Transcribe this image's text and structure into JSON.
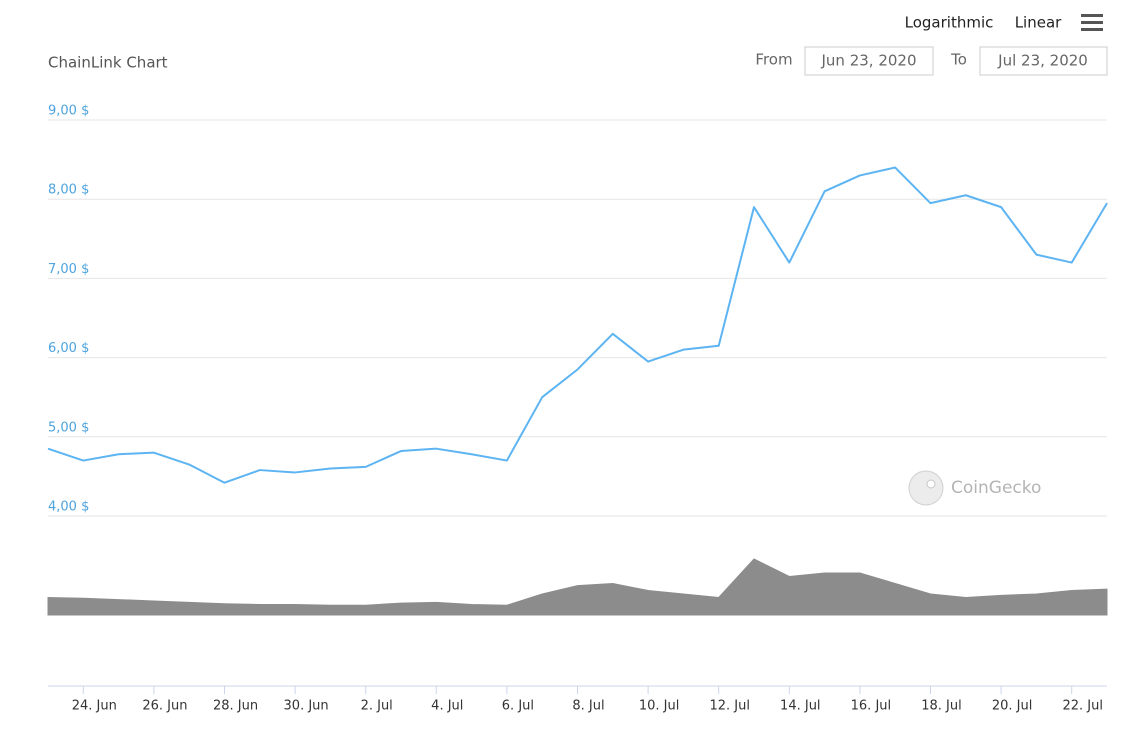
{
  "chart_data": {
    "type": "line",
    "title": "ChainLink Chart",
    "scale_options": [
      "Logarithmic",
      "Linear"
    ],
    "from_label": "From",
    "from": "Jun 23, 2020",
    "to_label": "To",
    "to": "Jul 23, 2020",
    "watermark": "CoinGecko",
    "x": [
      "2020-06-23",
      "2020-06-24",
      "2020-06-25",
      "2020-06-26",
      "2020-06-27",
      "2020-06-28",
      "2020-06-29",
      "2020-06-30",
      "2020-07-01",
      "2020-07-02",
      "2020-07-03",
      "2020-07-04",
      "2020-07-05",
      "2020-07-06",
      "2020-07-07",
      "2020-07-08",
      "2020-07-09",
      "2020-07-10",
      "2020-07-11",
      "2020-07-12",
      "2020-07-13",
      "2020-07-14",
      "2020-07-15",
      "2020-07-16",
      "2020-07-17",
      "2020-07-18",
      "2020-07-19",
      "2020-07-20",
      "2020-07-21",
      "2020-07-22",
      "2020-07-23"
    ],
    "xlim": [
      "2020-06-23",
      "2020-07-23"
    ],
    "xticks": [
      {
        "value": "2020-06-24",
        "label": "24. Jun"
      },
      {
        "value": "2020-06-26",
        "label": "26. Jun"
      },
      {
        "value": "2020-06-28",
        "label": "28. Jun"
      },
      {
        "value": "2020-06-30",
        "label": "30. Jun"
      },
      {
        "value": "2020-07-02",
        "label": "2. Jul"
      },
      {
        "value": "2020-07-04",
        "label": "4. Jul"
      },
      {
        "value": "2020-07-06",
        "label": "6. Jul"
      },
      {
        "value": "2020-07-08",
        "label": "8. Jul"
      },
      {
        "value": "2020-07-10",
        "label": "10. Jul"
      },
      {
        "value": "2020-07-12",
        "label": "12. Jul"
      },
      {
        "value": "2020-07-14",
        "label": "14. Jul"
      },
      {
        "value": "2020-07-16",
        "label": "16. Jul"
      },
      {
        "value": "2020-07-18",
        "label": "18. Jul"
      },
      {
        "value": "2020-07-20",
        "label": "20. Jul"
      },
      {
        "value": "2020-07-22",
        "label": "22. Jul"
      }
    ],
    "ylim": [
      4,
      9
    ],
    "yticks": [
      {
        "value": 4,
        "label": "4,00 $"
      },
      {
        "value": 5,
        "label": "5,00 $"
      },
      {
        "value": 6,
        "label": "6,00 $"
      },
      {
        "value": 7,
        "label": "7,00 $"
      },
      {
        "value": 8,
        "label": "8,00 $"
      },
      {
        "value": 9,
        "label": "9,00 $"
      }
    ],
    "y2lim": [
      -1,
      1.2
    ],
    "grid": true,
    "series": [
      {
        "color": "#5db4f2",
        "values": [
          4.85,
          4.7,
          4.78,
          4.8,
          4.65,
          4.42,
          4.58,
          4.55,
          4.6,
          4.62,
          4.82,
          4.85,
          4.78,
          4.7,
          5.5,
          5.85,
          6.3,
          5.95,
          6.1,
          6.15,
          7.9,
          7.2,
          8.1,
          8.3,
          8.4,
          7.95,
          8.05,
          7.9,
          7.3,
          7.2,
          7.95
        ]
      },
      {
        "type": "area",
        "axis": "y2",
        "color": "#8c8c8c",
        "values": [
          0.25,
          0.24,
          0.22,
          0.2,
          0.18,
          0.16,
          0.15,
          0.15,
          0.14,
          0.14,
          0.17,
          0.18,
          0.15,
          0.14,
          0.3,
          0.42,
          0.45,
          0.35,
          0.3,
          0.25,
          0.8,
          0.55,
          0.6,
          0.6,
          0.45,
          0.3,
          0.25,
          0.28,
          0.3,
          0.35,
          0.37
        ]
      }
    ]
  }
}
